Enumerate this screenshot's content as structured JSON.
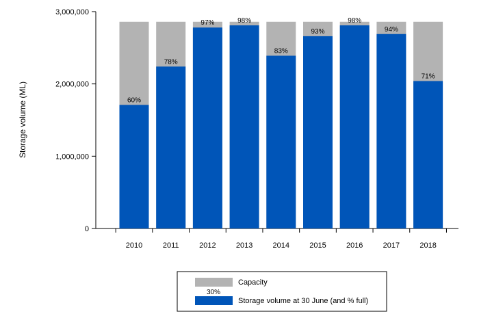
{
  "chart_data": {
    "type": "bar",
    "ylabel": "Storage volume (ML)",
    "ylim": [
      0,
      3000000
    ],
    "y_ticks": [
      0,
      1000000,
      2000000,
      3000000
    ],
    "y_tick_labels": [
      "0",
      "1,000,000",
      "2,000,000",
      "3,000,000"
    ],
    "categories": [
      "2010",
      "2011",
      "2012",
      "2013",
      "2014",
      "2015",
      "2016",
      "2017",
      "2018"
    ],
    "series": [
      {
        "name": "Capacity",
        "color": "#b3b3b3",
        "values": [
          2860000,
          2860000,
          2860000,
          2860000,
          2860000,
          2860000,
          2860000,
          2860000,
          2860000
        ]
      },
      {
        "name": "Storage volume at 30 June (and % full)",
        "color": "#0055b8",
        "values": [
          1710000,
          2240000,
          2780000,
          2810000,
          2390000,
          2660000,
          2810000,
          2690000,
          2040000
        ]
      }
    ],
    "data_labels": [
      "60%",
      "78%",
      "97%",
      "98%",
      "83%",
      "93%",
      "98%",
      "94%",
      "71%"
    ],
    "legend": {
      "placement": "bottom-center",
      "entries": [
        {
          "label": "Capacity",
          "color": "#b3b3b3"
        },
        {
          "label": "Storage volume at 30 June (and % full)",
          "color": "#0055b8",
          "sample_label": "30%"
        }
      ]
    },
    "grid": false
  }
}
